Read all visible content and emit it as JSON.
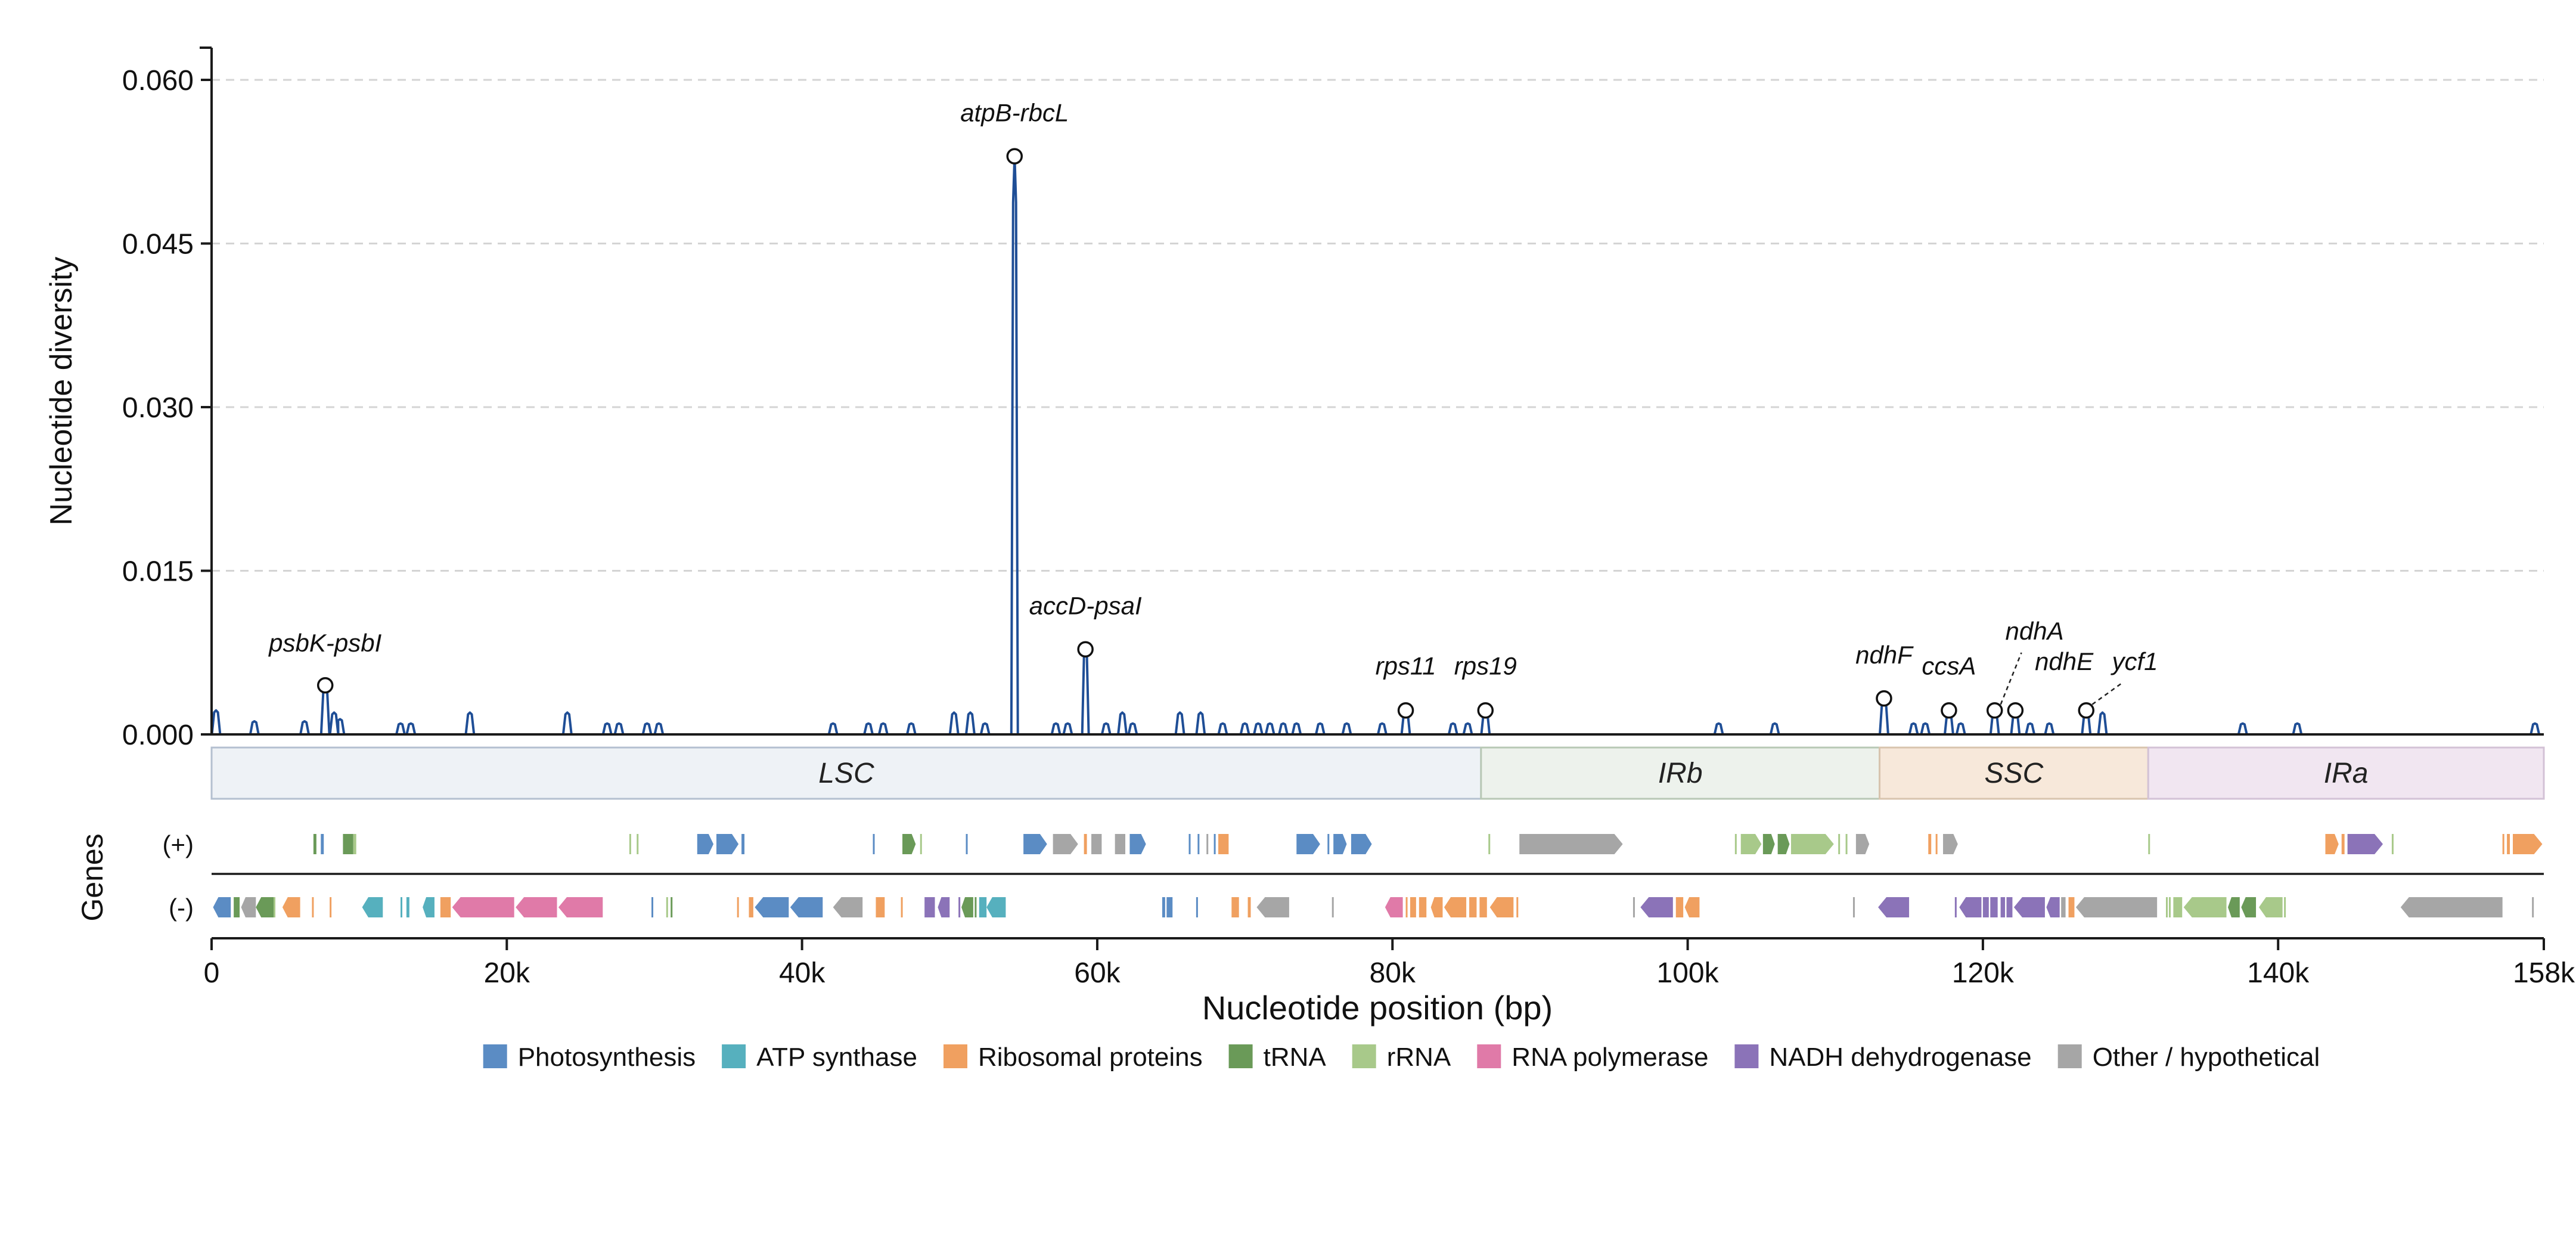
{
  "chart_data": {
    "type": "line",
    "ylabel": "Nucleotide diversity",
    "xlabel": "Nucleotide position (bp)",
    "genes_label": "Genes",
    "strand_labels": {
      "plus": "(+)",
      "minus": "(-)"
    },
    "xlim": [
      0,
      158000
    ],
    "ylim": [
      0,
      0.063
    ],
    "yticks": [
      0.0,
      0.015,
      0.03,
      0.045,
      0.06
    ],
    "ytick_labels": [
      "0.000",
      "0.015",
      "0.030",
      "0.045",
      "0.060"
    ],
    "xticks": [
      0,
      20000,
      40000,
      60000,
      80000,
      100000,
      120000,
      140000,
      158000
    ],
    "xtick_labels": [
      "0",
      "20k",
      "40k",
      "60k",
      "80k",
      "100k",
      "120k",
      "140k",
      "158k"
    ],
    "grid": "horizontal dashed",
    "line_color": "#1f4e96",
    "peaks": [
      {
        "x": 300,
        "y": 0.0022
      },
      {
        "x": 2900,
        "y": 0.0012
      },
      {
        "x": 6300,
        "y": 0.0012
      },
      {
        "x": 7700,
        "y": 0.0045
      },
      {
        "x": 8300,
        "y": 0.002
      },
      {
        "x": 8700,
        "y": 0.0014
      },
      {
        "x": 12800,
        "y": 0.001
      },
      {
        "x": 13500,
        "y": 0.001
      },
      {
        "x": 17500,
        "y": 0.002
      },
      {
        "x": 24100,
        "y": 0.002
      },
      {
        "x": 26800,
        "y": 0.001
      },
      {
        "x": 27600,
        "y": 0.001
      },
      {
        "x": 29500,
        "y": 0.001
      },
      {
        "x": 30300,
        "y": 0.001
      },
      {
        "x": 42100,
        "y": 0.001
      },
      {
        "x": 44500,
        "y": 0.001
      },
      {
        "x": 45500,
        "y": 0.001
      },
      {
        "x": 47400,
        "y": 0.001
      },
      {
        "x": 50300,
        "y": 0.002
      },
      {
        "x": 51400,
        "y": 0.002
      },
      {
        "x": 52400,
        "y": 0.001
      },
      {
        "x": 54400,
        "y": 0.053
      },
      {
        "x": 57200,
        "y": 0.001
      },
      {
        "x": 58000,
        "y": 0.001
      },
      {
        "x": 59200,
        "y": 0.0078
      },
      {
        "x": 60600,
        "y": 0.001
      },
      {
        "x": 61700,
        "y": 0.002
      },
      {
        "x": 62400,
        "y": 0.001
      },
      {
        "x": 65600,
        "y": 0.002
      },
      {
        "x": 67000,
        "y": 0.002
      },
      {
        "x": 68500,
        "y": 0.001
      },
      {
        "x": 70000,
        "y": 0.001
      },
      {
        "x": 70900,
        "y": 0.001
      },
      {
        "x": 71700,
        "y": 0.001
      },
      {
        "x": 72600,
        "y": 0.001
      },
      {
        "x": 73500,
        "y": 0.001
      },
      {
        "x": 75100,
        "y": 0.001
      },
      {
        "x": 76900,
        "y": 0.001
      },
      {
        "x": 79300,
        "y": 0.001
      },
      {
        "x": 80900,
        "y": 0.0022
      },
      {
        "x": 84100,
        "y": 0.001
      },
      {
        "x": 85100,
        "y": 0.001
      },
      {
        "x": 86300,
        "y": 0.0022
      },
      {
        "x": 102100,
        "y": 0.001
      },
      {
        "x": 105900,
        "y": 0.001
      },
      {
        "x": 113300,
        "y": 0.0033
      },
      {
        "x": 115300,
        "y": 0.001
      },
      {
        "x": 116100,
        "y": 0.001
      },
      {
        "x": 117700,
        "y": 0.0022
      },
      {
        "x": 118500,
        "y": 0.001
      },
      {
        "x": 120800,
        "y": 0.0022
      },
      {
        "x": 122200,
        "y": 0.0022
      },
      {
        "x": 123200,
        "y": 0.001
      },
      {
        "x": 124500,
        "y": 0.001
      },
      {
        "x": 127000,
        "y": 0.0022
      },
      {
        "x": 128100,
        "y": 0.002
      },
      {
        "x": 137600,
        "y": 0.001
      },
      {
        "x": 141300,
        "y": 0.001
      },
      {
        "x": 157400,
        "y": 0.001
      }
    ],
    "annotations": [
      {
        "label": "atpB-rbcL",
        "x": 54400,
        "y": 0.053,
        "lx": 54400,
        "ly": 0.0562,
        "leader": false
      },
      {
        "label": "accD-psaI",
        "x": 59200,
        "y": 0.0078,
        "lx": 59200,
        "ly": 0.011,
        "leader": false
      },
      {
        "label": "psbK-psbI",
        "x": 7700,
        "y": 0.0045,
        "lx": 7700,
        "ly": 0.0076,
        "leader": false
      },
      {
        "label": "rps11",
        "x": 80900,
        "y": 0.0022,
        "lx": 80900,
        "ly": 0.0055,
        "leader": false
      },
      {
        "label": "rps19",
        "x": 86300,
        "y": 0.0022,
        "lx": 86300,
        "ly": 0.0055,
        "leader": false
      },
      {
        "label": "ndhF",
        "x": 113300,
        "y": 0.0033,
        "lx": 113300,
        "ly": 0.0065,
        "leader": false
      },
      {
        "label": "ccsA",
        "x": 117700,
        "y": 0.0022,
        "lx": 117700,
        "ly": 0.0055,
        "leader": false
      },
      {
        "label": "ndhA",
        "x": 120800,
        "y": 0.0022,
        "lx": 123500,
        "ly": 0.0087,
        "leader": true
      },
      {
        "label": "ndhE",
        "x": 122200,
        "y": 0.0022,
        "lx": 125500,
        "ly": 0.0059,
        "leader": false
      },
      {
        "label": "ycf1",
        "x": 127000,
        "y": 0.0022,
        "lx": 130300,
        "ly": 0.0059,
        "leader": true
      }
    ],
    "regions": [
      {
        "label": "LSC",
        "start": 0,
        "end": 86000,
        "color": "#eef2f6",
        "border": "#b4c0d0"
      },
      {
        "label": "IRb",
        "start": 86000,
        "end": 113000,
        "color": "#edf2ec",
        "border": "#b8c8b5"
      },
      {
        "label": "SSC",
        "start": 113000,
        "end": 131200,
        "color": "#f7e8da",
        "border": "#d8c4ae"
      },
      {
        "label": "IRa",
        "start": 131200,
        "end": 158000,
        "color": "#f1e6f1",
        "border": "#d3c2d6"
      }
    ],
    "legend": [
      {
        "label": "Photosynthesis",
        "color": "#5b8cc4"
      },
      {
        "label": "ATP synthase",
        "color": "#56b0be"
      },
      {
        "label": "Ribosomal proteins",
        "color": "#f0a060"
      },
      {
        "label": "tRNA",
        "color": "#6a9a58"
      },
      {
        "label": "rRNA",
        "color": "#a8c98a"
      },
      {
        "label": "RNA polymerase",
        "color": "#e07aa8"
      },
      {
        "label": "NADH dehydrogenase",
        "color": "#8b73b8"
      },
      {
        "label": "Other / hypothetical",
        "color": "#a6a6a6"
      }
    ],
    "legend_placement": "bottom",
    "genes_plus": [
      {
        "s": 6900,
        "e": 7100,
        "c": "tRNA"
      },
      {
        "s": 7400,
        "e": 7600,
        "c": "Photosynthesis"
      },
      {
        "s": 8900,
        "e": 9600,
        "c": "tRNA"
      },
      {
        "s": 9600,
        "e": 9800,
        "c": "rRNA"
      },
      {
        "s": 28300,
        "e": 28400,
        "c": "rRNA"
      },
      {
        "s": 28800,
        "e": 28900,
        "c": "rRNA"
      },
      {
        "s": 32900,
        "e": 34000,
        "c": "Photosynthesis"
      },
      {
        "s": 34200,
        "e": 35700,
        "c": "Photosynthesis"
      },
      {
        "s": 35900,
        "e": 36100,
        "c": "Photosynthesis"
      },
      {
        "s": 44800,
        "e": 44900,
        "c": "Photosynthesis"
      },
      {
        "s": 46800,
        "e": 47700,
        "c": "tRNA"
      },
      {
        "s": 48000,
        "e": 48100,
        "c": "rRNA"
      },
      {
        "s": 51100,
        "e": 51200,
        "c": "Photosynthesis"
      },
      {
        "s": 55000,
        "e": 56600,
        "c": "Photosynthesis"
      },
      {
        "s": 57000,
        "e": 58700,
        "c": "Other"
      },
      {
        "s": 59100,
        "e": 59300,
        "c": "Ribosomal"
      },
      {
        "s": 59600,
        "e": 60300,
        "c": "Other"
      },
      {
        "s": 61200,
        "e": 61900,
        "c": "Other"
      },
      {
        "s": 62200,
        "e": 63300,
        "c": "Photosynthesis"
      },
      {
        "s": 66200,
        "e": 66300,
        "c": "Photosynthesis"
      },
      {
        "s": 66800,
        "e": 66900,
        "c": "Photosynthesis"
      },
      {
        "s": 67400,
        "e": 67500,
        "c": "Other"
      },
      {
        "s": 67900,
        "e": 68000,
        "c": "Photosynthesis"
      },
      {
        "s": 68200,
        "e": 68900,
        "c": "Ribosomal"
      },
      {
        "s": 73500,
        "e": 75100,
        "c": "Photosynthesis"
      },
      {
        "s": 75600,
        "e": 75700,
        "c": "Photosynthesis"
      },
      {
        "s": 76000,
        "e": 76900,
        "c": "Photosynthesis"
      },
      {
        "s": 77200,
        "e": 78600,
        "c": "Photosynthesis"
      },
      {
        "s": 86500,
        "e": 86600,
        "c": "rRNA"
      },
      {
        "s": 88600,
        "e": 95600,
        "c": "Other"
      },
      {
        "s": 103200,
        "e": 103300,
        "c": "rRNA"
      },
      {
        "s": 103600,
        "e": 105000,
        "c": "rRNA"
      },
      {
        "s": 105100,
        "e": 105900,
        "c": "tRNA"
      },
      {
        "s": 106100,
        "e": 106900,
        "c": "tRNA"
      },
      {
        "s": 107000,
        "e": 109900,
        "c": "rRNA"
      },
      {
        "s": 110200,
        "e": 110300,
        "c": "rRNA"
      },
      {
        "s": 110700,
        "e": 110800,
        "c": "rRNA"
      },
      {
        "s": 111400,
        "e": 112300,
        "c": "Other"
      },
      {
        "s": 116300,
        "e": 116500,
        "c": "Ribosomal"
      },
      {
        "s": 116800,
        "e": 116900,
        "c": "Ribosomal"
      },
      {
        "s": 117300,
        "e": 118300,
        "c": "Other"
      },
      {
        "s": 131200,
        "e": 131300,
        "c": "rRNA"
      },
      {
        "s": 143200,
        "e": 144100,
        "c": "Ribosomal"
      },
      {
        "s": 144300,
        "e": 144500,
        "c": "Ribosomal"
      },
      {
        "s": 144700,
        "e": 147100,
        "c": "NADH"
      },
      {
        "s": 147700,
        "e": 147800,
        "c": "rRNA"
      },
      {
        "s": 155200,
        "e": 155300,
        "c": "Ribosomal"
      },
      {
        "s": 155500,
        "e": 155700,
        "c": "Ribosomal"
      },
      {
        "s": 155900,
        "e": 157900,
        "c": "Ribosomal"
      }
    ],
    "genes_minus": [
      {
        "s": 100,
        "e": 1300,
        "c": "Photosynthesis"
      },
      {
        "s": 1500,
        "e": 1900,
        "c": "tRNA"
      },
      {
        "s": 2000,
        "e": 3000,
        "c": "Other"
      },
      {
        "s": 3000,
        "e": 4200,
        "c": "tRNA"
      },
      {
        "s": 4200,
        "e": 4300,
        "c": "rRNA"
      },
      {
        "s": 4800,
        "e": 6000,
        "c": "Ribosomal"
      },
      {
        "s": 6800,
        "e": 6900,
        "c": "Ribosomal"
      },
      {
        "s": 8000,
        "e": 8100,
        "c": "Ribosomal"
      },
      {
        "s": 10200,
        "e": 11600,
        "c": "ATP"
      },
      {
        "s": 12800,
        "e": 12900,
        "c": "ATP"
      },
      {
        "s": 13200,
        "e": 13400,
        "c": "ATP"
      },
      {
        "s": 14300,
        "e": 15100,
        "c": "ATP"
      },
      {
        "s": 15500,
        "e": 16200,
        "c": "Ribosomal"
      },
      {
        "s": 16300,
        "e": 20500,
        "c": "RNA"
      },
      {
        "s": 20600,
        "e": 23400,
        "c": "RNA"
      },
      {
        "s": 23500,
        "e": 26500,
        "c": "RNA"
      },
      {
        "s": 29800,
        "e": 29900,
        "c": "Photosynthesis"
      },
      {
        "s": 30800,
        "e": 30900,
        "c": "rRNA"
      },
      {
        "s": 31100,
        "e": 31200,
        "c": "tRNA"
      },
      {
        "s": 35600,
        "e": 35700,
        "c": "Ribosomal"
      },
      {
        "s": 36400,
        "e": 36700,
        "c": "Ribosomal"
      },
      {
        "s": 36800,
        "e": 39100,
        "c": "Photosynthesis"
      },
      {
        "s": 39200,
        "e": 41400,
        "c": "Photosynthesis"
      },
      {
        "s": 42100,
        "e": 44100,
        "c": "Other"
      },
      {
        "s": 45000,
        "e": 45600,
        "c": "Ribosomal"
      },
      {
        "s": 46700,
        "e": 46800,
        "c": "Ribosomal"
      },
      {
        "s": 48300,
        "e": 49000,
        "c": "NADH"
      },
      {
        "s": 49200,
        "e": 50000,
        "c": "NADH"
      },
      {
        "s": 50600,
        "e": 50700,
        "c": "NADH"
      },
      {
        "s": 50800,
        "e": 51600,
        "c": "tRNA"
      },
      {
        "s": 51700,
        "e": 51800,
        "c": "tRNA"
      },
      {
        "s": 52000,
        "e": 52500,
        "c": "ATP"
      },
      {
        "s": 52500,
        "e": 53800,
        "c": "ATP"
      },
      {
        "s": 64400,
        "e": 64600,
        "c": "Photosynthesis"
      },
      {
        "s": 64700,
        "e": 65100,
        "c": "Photosynthesis"
      },
      {
        "s": 66700,
        "e": 66800,
        "c": "Photosynthesis"
      },
      {
        "s": 69100,
        "e": 69600,
        "c": "Ribosomal"
      },
      {
        "s": 70200,
        "e": 70400,
        "c": "Ribosomal"
      },
      {
        "s": 70800,
        "e": 73000,
        "c": "Other"
      },
      {
        "s": 75900,
        "e": 76000,
        "c": "Other"
      },
      {
        "s": 79500,
        "e": 80700,
        "c": "RNA"
      },
      {
        "s": 80900,
        "e": 81000,
        "c": "Ribosomal"
      },
      {
        "s": 81200,
        "e": 81600,
        "c": "Ribosomal"
      },
      {
        "s": 81800,
        "e": 82300,
        "c": "Ribosomal"
      },
      {
        "s": 82600,
        "e": 83400,
        "c": "Ribosomal"
      },
      {
        "s": 83500,
        "e": 85000,
        "c": "Ribosomal"
      },
      {
        "s": 85200,
        "e": 85700,
        "c": "Ribosomal"
      },
      {
        "s": 85900,
        "e": 86400,
        "c": "Ribosomal"
      },
      {
        "s": 86600,
        "e": 88200,
        "c": "Ribosomal"
      },
      {
        "s": 88400,
        "e": 88500,
        "c": "Ribosomal"
      },
      {
        "s": 96300,
        "e": 96400,
        "c": "Other"
      },
      {
        "s": 96800,
        "e": 99000,
        "c": "NADH"
      },
      {
        "s": 99200,
        "e": 99700,
        "c": "Ribosomal"
      },
      {
        "s": 99800,
        "e": 100800,
        "c": "Ribosomal"
      },
      {
        "s": 111200,
        "e": 111300,
        "c": "Other"
      },
      {
        "s": 112900,
        "e": 115000,
        "c": "NADH"
      },
      {
        "s": 118100,
        "e": 118200,
        "c": "NADH"
      },
      {
        "s": 118400,
        "e": 119900,
        "c": "NADH"
      },
      {
        "s": 120000,
        "e": 120400,
        "c": "NADH"
      },
      {
        "s": 120500,
        "e": 121000,
        "c": "NADH"
      },
      {
        "s": 121200,
        "e": 121500,
        "c": "NADH"
      },
      {
        "s": 121600,
        "e": 122000,
        "c": "NADH"
      },
      {
        "s": 122100,
        "e": 124200,
        "c": "NADH"
      },
      {
        "s": 124300,
        "e": 125200,
        "c": "NADH"
      },
      {
        "s": 125300,
        "e": 125600,
        "c": "Other"
      },
      {
        "s": 125800,
        "e": 126200,
        "c": "Ribosomal"
      },
      {
        "s": 126300,
        "e": 131800,
        "c": "Other"
      },
      {
        "s": 132400,
        "e": 132500,
        "c": "rRNA"
      },
      {
        "s": 132600,
        "e": 132700,
        "c": "rRNA"
      },
      {
        "s": 132900,
        "e": 133500,
        "c": "rRNA"
      },
      {
        "s": 133600,
        "e": 136500,
        "c": "rRNA"
      },
      {
        "s": 136600,
        "e": 137400,
        "c": "tRNA"
      },
      {
        "s": 137500,
        "e": 138500,
        "c": "tRNA"
      },
      {
        "s": 138700,
        "e": 140300,
        "c": "rRNA"
      },
      {
        "s": 140400,
        "e": 140500,
        "c": "rRNA"
      },
      {
        "s": 148300,
        "e": 155200,
        "c": "Other"
      },
      {
        "s": 157200,
        "e": 157300,
        "c": "Other"
      }
    ]
  }
}
